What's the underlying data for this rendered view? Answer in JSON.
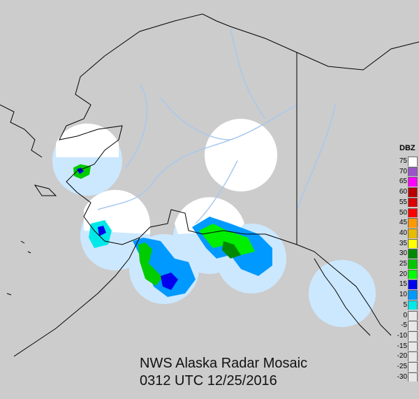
{
  "title": "NWS Alaska Radar Mosaic",
  "timestamp": "0312 UTC 12/25/2016",
  "legend": {
    "title": "DBZ",
    "entries": [
      {
        "label": "75",
        "color": "#ffffff"
      },
      {
        "label": "70",
        "color": "#9955c8"
      },
      {
        "label": "65",
        "color": "#ff00ff"
      },
      {
        "label": "60",
        "color": "#b80000"
      },
      {
        "label": "55",
        "color": "#d80000"
      },
      {
        "label": "50",
        "color": "#ff0000"
      },
      {
        "label": "45",
        "color": "#ff9900"
      },
      {
        "label": "40",
        "color": "#e6bb00"
      },
      {
        "label": "35",
        "color": "#ffff00"
      },
      {
        "label": "30",
        "color": "#008800"
      },
      {
        "label": "25",
        "color": "#00c800"
      },
      {
        "label": "20",
        "color": "#00ff00"
      },
      {
        "label": "15",
        "color": "#0000ee"
      },
      {
        "label": "10",
        "color": "#0099ff"
      },
      {
        "label": "5",
        "color": "#00e8e8"
      },
      {
        "label": "0",
        "color": "#e8e8e8"
      },
      {
        "label": "-5",
        "color": "#e8e8e8"
      },
      {
        "label": "-10",
        "color": "#e8e8e8"
      },
      {
        "label": "-15",
        "color": "#e8e8e8"
      },
      {
        "label": "-20",
        "color": "#e8e8e8"
      },
      {
        "label": "-25",
        "color": "#e8e8e8"
      },
      {
        "label": "-30",
        "color": "#e8e8e8"
      }
    ]
  },
  "colors": {
    "background": "#cccccc",
    "coverage": "#cce8ff",
    "rivers": "#a8c8ee",
    "coast": "#000000"
  }
}
